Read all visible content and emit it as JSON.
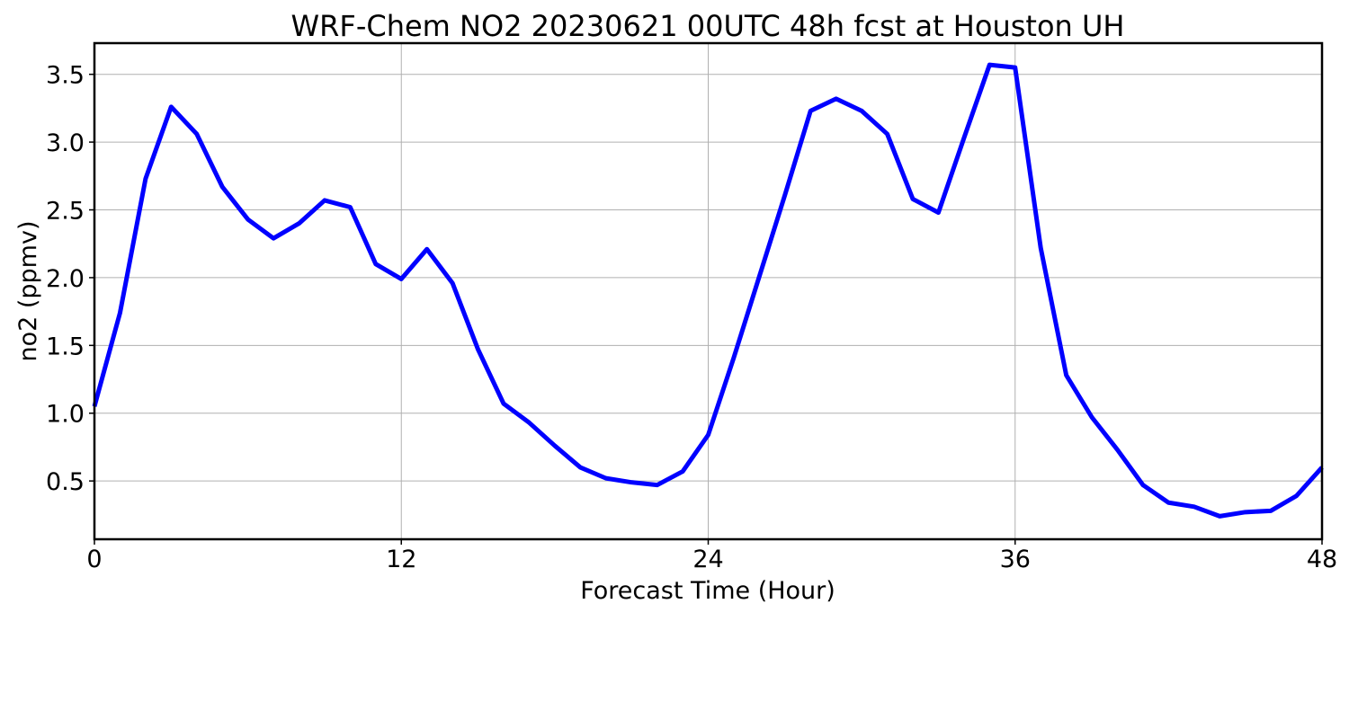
{
  "chart_data": {
    "type": "line",
    "title": "WRF-Chem NO2  20230621 00UTC 48h fcst at Houston UH",
    "xlabel": "Forecast Time (Hour)",
    "ylabel": "no2  (ppmv)",
    "xlim": [
      0,
      48
    ],
    "ylim": [
      0.07,
      3.73
    ],
    "xticks": [
      0,
      12,
      24,
      36,
      48
    ],
    "xtick_labels": [
      "0",
      "12",
      "24",
      "36",
      "48"
    ],
    "yticks": [
      0.5,
      1.0,
      1.5,
      2.0,
      2.5,
      3.0,
      3.5
    ],
    "ytick_labels": [
      "0.5",
      "1.0",
      "1.5",
      "2.0",
      "2.5",
      "3.0",
      "3.5"
    ],
    "grid": true,
    "legend": "none",
    "series": [
      {
        "color": "#0000ff",
        "x": [
          0,
          1,
          2,
          3,
          4,
          5,
          6,
          7,
          8,
          9,
          10,
          11,
          12,
          13,
          14,
          15,
          16,
          17,
          18,
          19,
          20,
          21,
          22,
          23,
          24,
          25,
          26,
          27,
          28,
          29,
          30,
          31,
          32,
          33,
          34,
          35,
          36,
          37,
          38,
          39,
          40,
          41,
          42,
          43,
          44,
          45,
          46,
          47,
          48
        ],
        "y": [
          1.05,
          1.74,
          2.73,
          3.26,
          3.06,
          2.67,
          2.43,
          2.29,
          2.4,
          2.57,
          2.52,
          2.1,
          1.99,
          2.21,
          1.96,
          1.47,
          1.07,
          0.93,
          0.76,
          0.6,
          0.52,
          0.49,
          0.47,
          0.57,
          0.84,
          1.41,
          2.01,
          2.61,
          3.23,
          3.32,
          3.23,
          3.06,
          2.58,
          2.48,
          3.03,
          3.57,
          3.55,
          2.22,
          1.28,
          0.97,
          0.73,
          0.47,
          0.34,
          0.31,
          0.24,
          0.27,
          0.28,
          0.39,
          0.6
        ]
      }
    ]
  }
}
